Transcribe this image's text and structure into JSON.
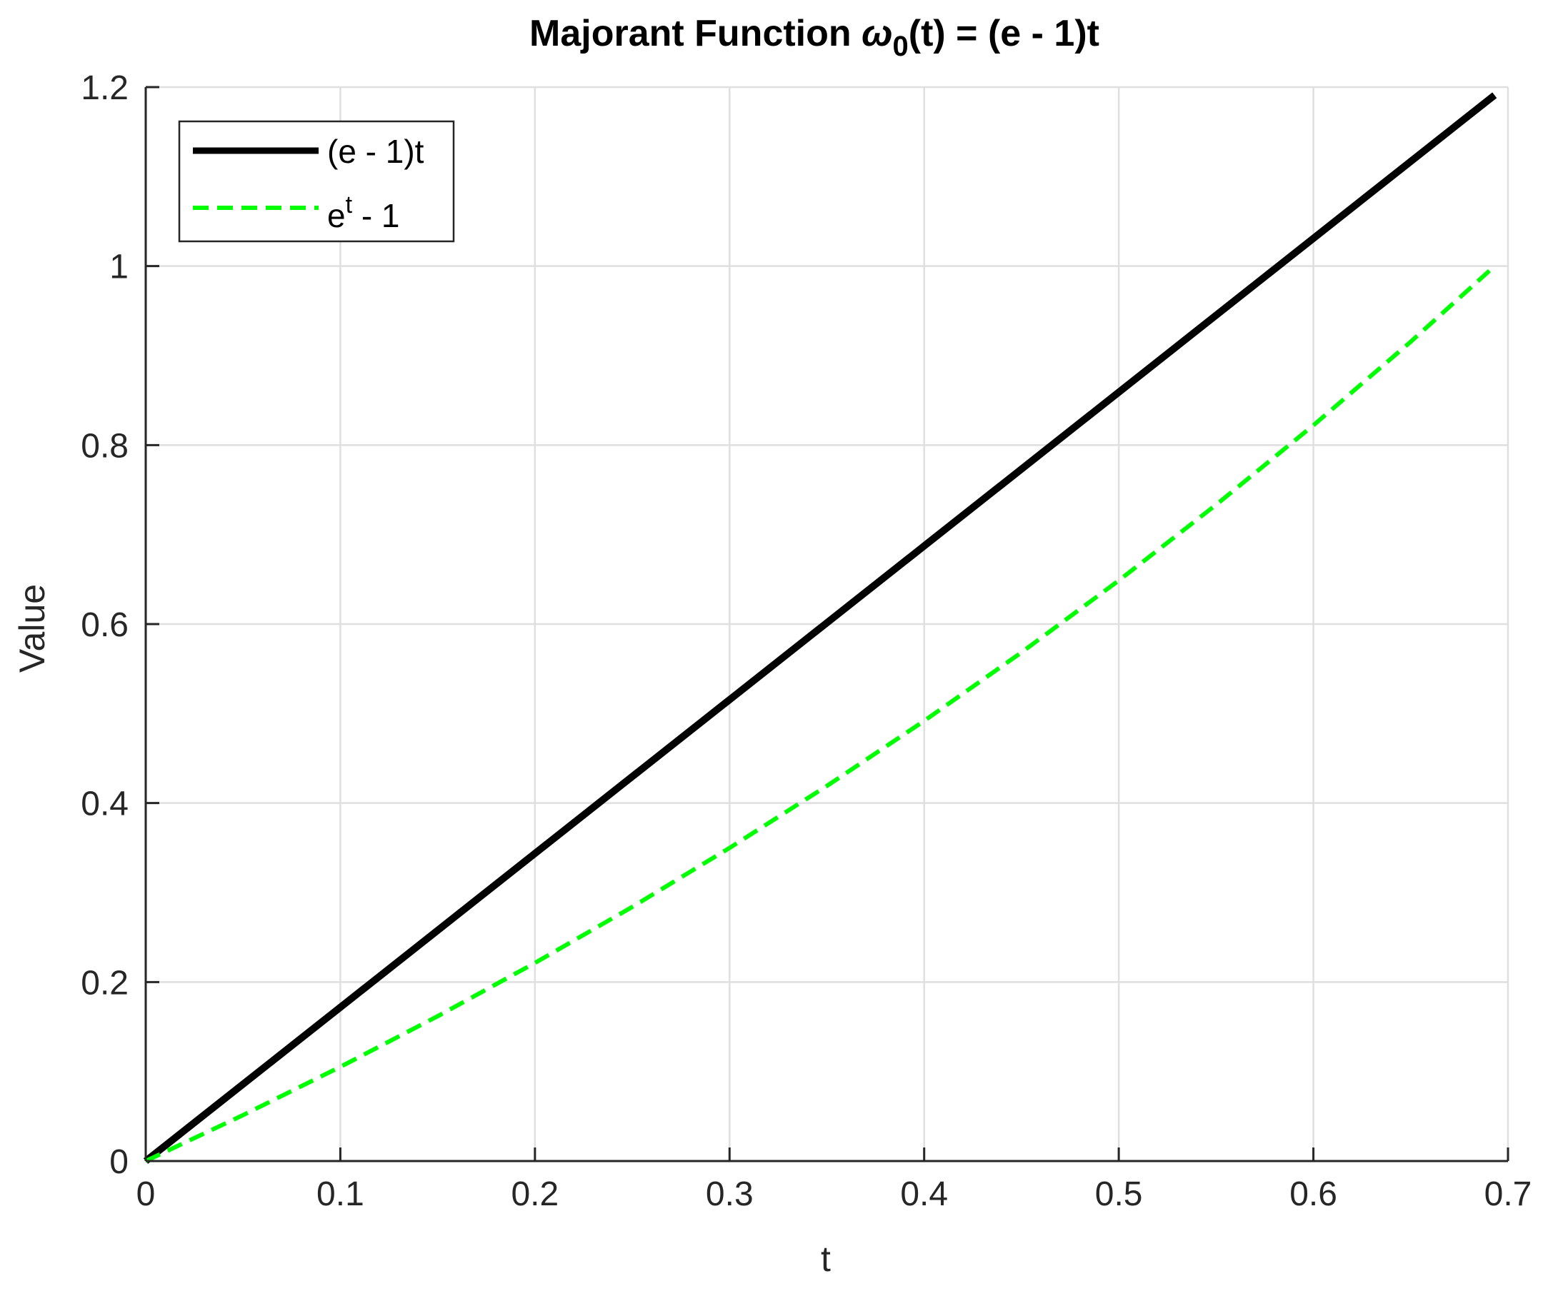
{
  "chart_data": {
    "type": "line",
    "title": {
      "prefix": "Majorant Function ",
      "symbol": "ω",
      "subscript": "0",
      "suffix": "(t) = (e - 1)t"
    },
    "xlabel": "t",
    "ylabel": "Value",
    "xlim": [
      0,
      0.7
    ],
    "ylim": [
      0,
      1.2
    ],
    "xticks": [
      0,
      0.1,
      0.2,
      0.3,
      0.4,
      0.5,
      0.6,
      0.7
    ],
    "xtick_labels": [
      "0",
      "0.1",
      "0.2",
      "0.3",
      "0.4",
      "0.5",
      "0.6",
      "0.7"
    ],
    "yticks": [
      0,
      0.2,
      0.4,
      0.6,
      0.8,
      1,
      1.2
    ],
    "ytick_labels": [
      "0",
      "0.2",
      "0.4",
      "0.6",
      "0.8",
      "1",
      "1.2"
    ],
    "grid": true,
    "legend_position": "top-left",
    "series": [
      {
        "name": "(e - 1)t",
        "color": "#000000",
        "style": "solid",
        "x": [
          0,
          0.1,
          0.2,
          0.3,
          0.4,
          0.5,
          0.6,
          0.6931
        ],
        "y": [
          0,
          0.1718,
          0.3437,
          0.5155,
          0.6873,
          0.8591,
          1.031,
          1.191
        ]
      },
      {
        "name_base": "e",
        "name_sup": "t",
        "name_tail": " - 1",
        "color": "#00ff00",
        "style": "dashed",
        "x": [
          0,
          0.05,
          0.1,
          0.15,
          0.2,
          0.25,
          0.3,
          0.35,
          0.4,
          0.45,
          0.5,
          0.55,
          0.6,
          0.65,
          0.6931
        ],
        "y": [
          0,
          0.0513,
          0.1052,
          0.1618,
          0.2214,
          0.284,
          0.3499,
          0.4191,
          0.4918,
          0.5683,
          0.6487,
          0.7333,
          0.8221,
          0.9155,
          1.0
        ]
      }
    ]
  }
}
